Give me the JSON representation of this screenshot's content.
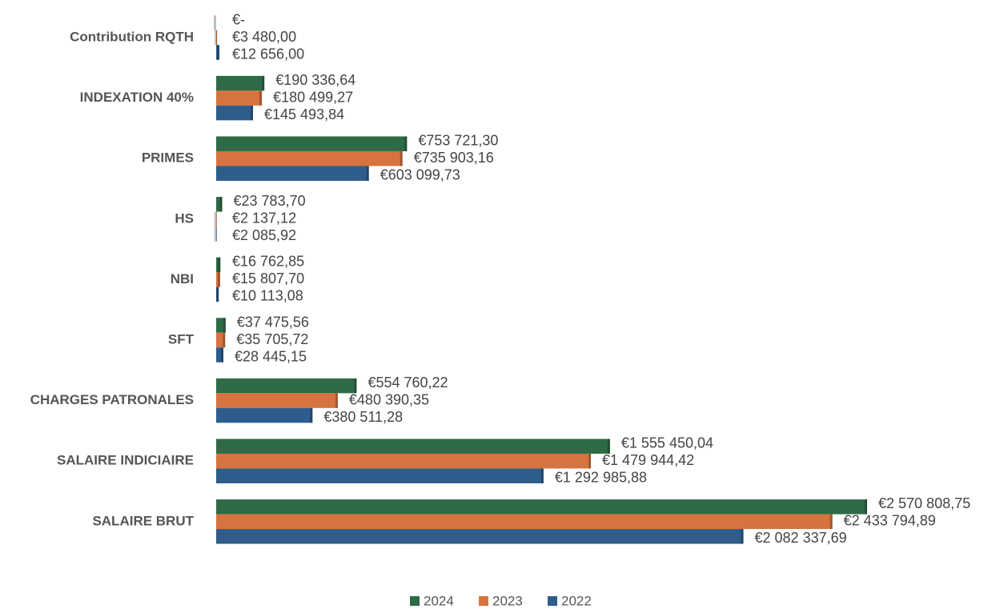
{
  "chart_data": {
    "type": "barh",
    "categories": [
      "Contribution RQTH",
      "INDEXATION 40%",
      "PRIMES",
      "HS",
      "NBI",
      "SFT",
      "CHARGES PATRONALES",
      "SALAIRE INDICIAIRE",
      "SALAIRE BRUT"
    ],
    "series": [
      {
        "name": "2024",
        "color": "#2f6a46",
        "values": [
          0,
          190336.64,
          753721.3,
          23783.7,
          16762.85,
          37475.56,
          554760.22,
          1555450.04,
          2570808.75
        ],
        "value_labels": [
          "€-",
          "€190 336,64",
          "€753 721,30",
          "€23 783,70",
          "€16 762,85",
          "€37 475,56",
          "€554 760,22",
          "€1 555 450,04",
          "€2 570 808,75"
        ]
      },
      {
        "name": "2023",
        "color": "#d7733f",
        "values": [
          3480.0,
          180499.27,
          735903.16,
          2137.12,
          15807.7,
          35705.72,
          480390.35,
          1479944.42,
          2433794.89
        ],
        "value_labels": [
          "€3 480,00",
          "€180 499,27",
          "€735 903,16",
          "€2 137,12",
          "€15 807,70",
          "€35 705,72",
          "€480 390,35",
          "€1 479 944,42",
          "€2 433 794,89"
        ]
      },
      {
        "name": "2022",
        "color": "#2e5d8c",
        "values": [
          12656.0,
          145493.84,
          603099.73,
          2085.92,
          10113.08,
          28445.15,
          380511.28,
          1292985.88,
          2082337.69
        ],
        "value_labels": [
          "€12 656,00",
          "€145 493,84",
          "€603 099,73",
          "€2 085,92",
          "€10 113,08",
          "€28 445,15",
          "€380 511,28",
          "€1 292 985,88",
          "€2 082 337,69"
        ]
      }
    ],
    "legend": "bottom"
  }
}
